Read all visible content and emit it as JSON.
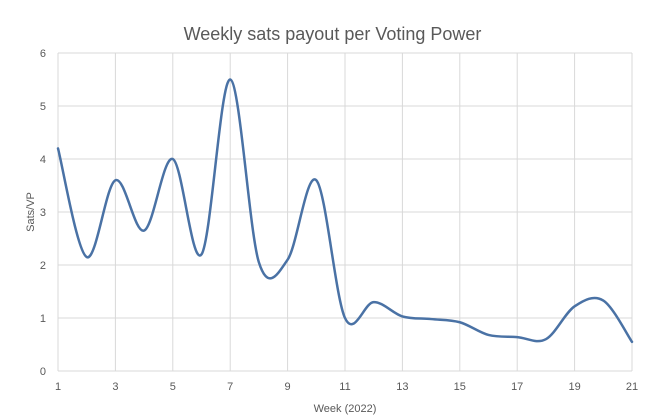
{
  "chart_data": {
    "type": "line",
    "title": "Weekly sats payout per Voting Power",
    "xlabel": "Week (2022)",
    "ylabel": "Sats/VP",
    "xlim": [
      1,
      21
    ],
    "ylim": [
      0,
      6
    ],
    "x_ticks": [
      1,
      3,
      5,
      7,
      9,
      11,
      13,
      15,
      17,
      19,
      21
    ],
    "y_ticks": [
      0,
      1,
      2,
      3,
      4,
      5,
      6
    ],
    "grid": true,
    "legend": "none",
    "smooth": true,
    "series": [
      {
        "color": "#4a72a5",
        "x": [
          1,
          2,
          3,
          4,
          5,
          6,
          7,
          8,
          9,
          10,
          11,
          12,
          13,
          14,
          15,
          16,
          17,
          18,
          19,
          20,
          21
        ],
        "y": [
          4.2,
          2.15,
          3.6,
          2.65,
          4.0,
          2.2,
          5.5,
          2.05,
          2.1,
          3.6,
          1.0,
          1.3,
          1.03,
          0.98,
          0.92,
          0.68,
          0.64,
          0.6,
          1.22,
          1.33,
          0.55
        ]
      }
    ]
  }
}
